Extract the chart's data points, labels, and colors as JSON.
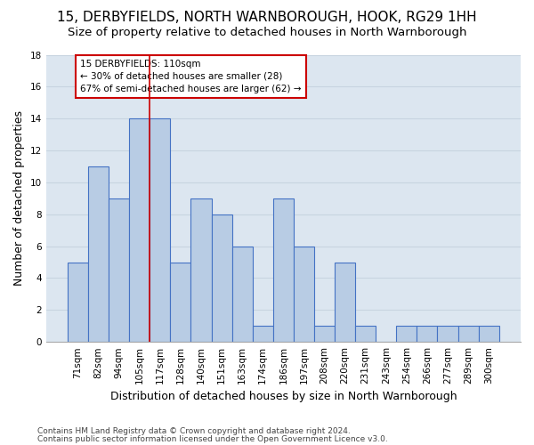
{
  "title": "15, DERBYFIELDS, NORTH WARNBOROUGH, HOOK, RG29 1HH",
  "subtitle": "Size of property relative to detached houses in North Warnborough",
  "xlabel": "Distribution of detached houses by size in North Warnborough",
  "ylabel": "Number of detached properties",
  "categories": [
    "71sqm",
    "82sqm",
    "94sqm",
    "105sqm",
    "117sqm",
    "128sqm",
    "140sqm",
    "151sqm",
    "163sqm",
    "174sqm",
    "186sqm",
    "197sqm",
    "208sqm",
    "220sqm",
    "231sqm",
    "243sqm",
    "254sqm",
    "266sqm",
    "277sqm",
    "289sqm",
    "300sqm"
  ],
  "values": [
    5,
    11,
    9,
    14,
    14,
    5,
    9,
    8,
    6,
    1,
    9,
    6,
    1,
    5,
    1,
    0,
    1,
    1,
    1,
    1,
    1
  ],
  "bar_color": "#b8cce4",
  "bar_edge_color": "#4472c4",
  "bar_edge_width": 0.8,
  "vline_color": "#cc0000",
  "vline_pos": 3.5,
  "annotation_text": "15 DERBYFIELDS: 110sqm\n← 30% of detached houses are smaller (28)\n67% of semi-detached houses are larger (62) →",
  "annotation_box_color": "#ffffff",
  "annotation_box_edge": "#cc0000",
  "ylim": [
    0,
    18
  ],
  "yticks": [
    0,
    2,
    4,
    6,
    8,
    10,
    12,
    14,
    16,
    18
  ],
  "grid_color": "#c8d4e0",
  "bg_color": "#dce6f0",
  "fig_bg_color": "#ffffff",
  "footer1": "Contains HM Land Registry data © Crown copyright and database right 2024.",
  "footer2": "Contains public sector information licensed under the Open Government Licence v3.0.",
  "title_fontsize": 11,
  "subtitle_fontsize": 9.5,
  "xlabel_fontsize": 9,
  "ylabel_fontsize": 9,
  "tick_fontsize": 7.5,
  "footer_fontsize": 6.5
}
